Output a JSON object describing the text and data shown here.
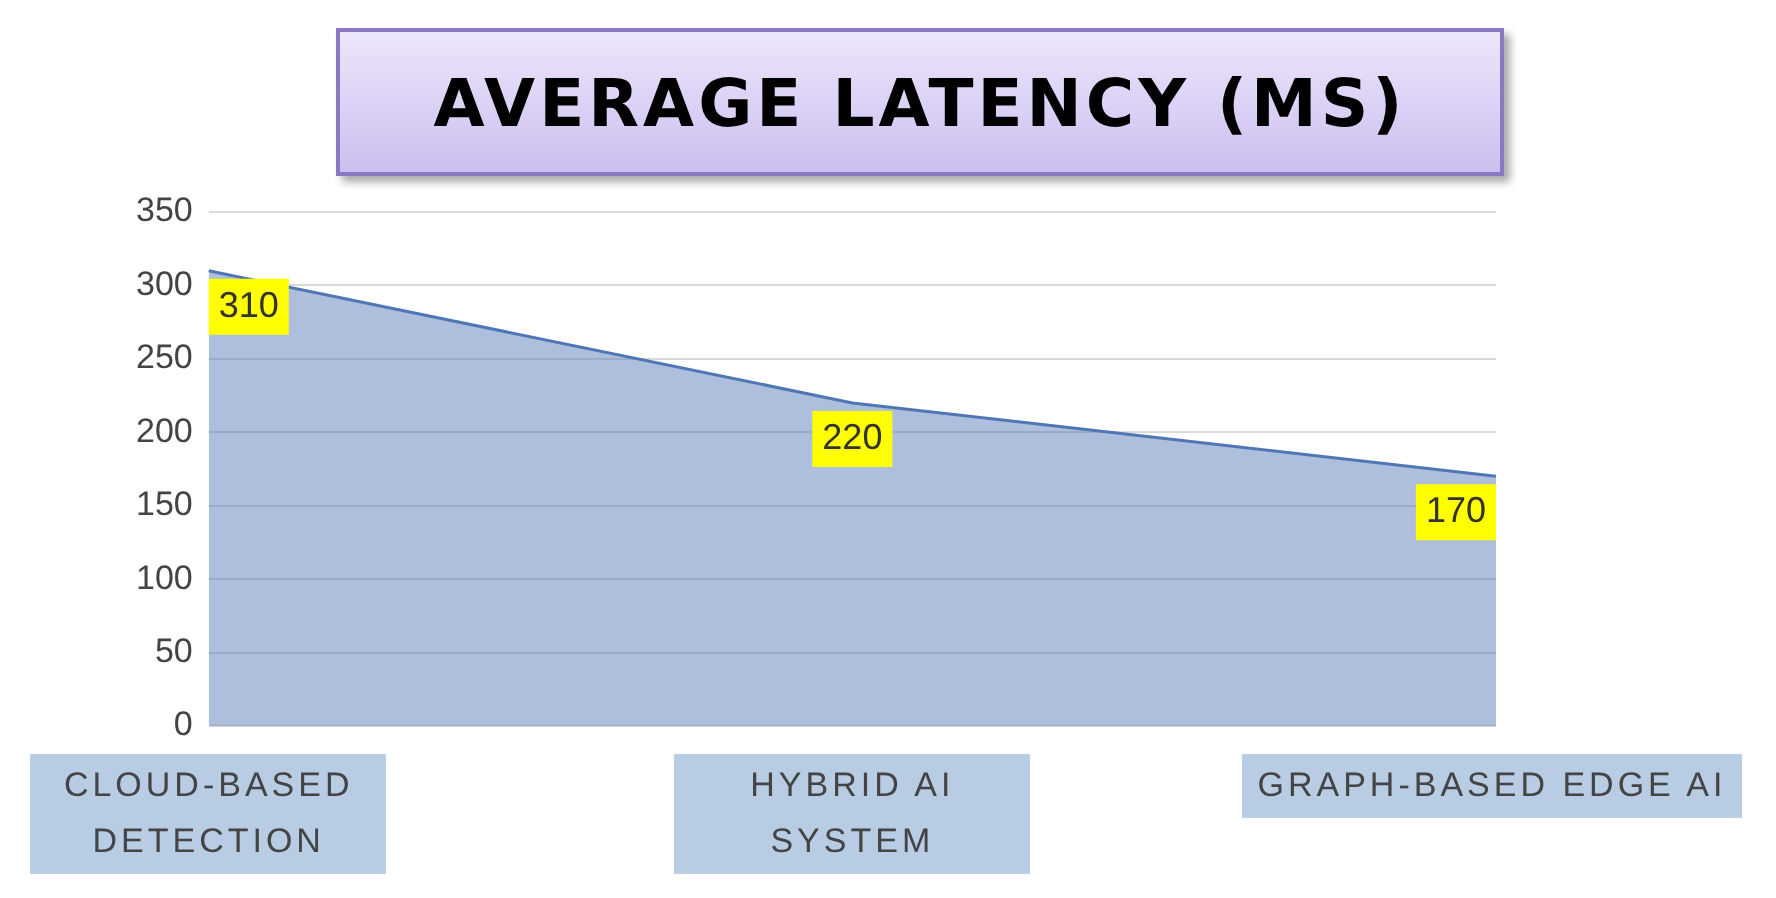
{
  "chart_data": {
    "type": "area",
    "title": "AVERAGE LATENCY (MS)",
    "categories": [
      "CLOUD-BASED DETECTION",
      "HYBRID AI SYSTEM",
      "GRAPH-BASED EDGE AI"
    ],
    "series": [
      {
        "color": "#4f76b5",
        "values": [
          310,
          220,
          170
        ]
      }
    ],
    "ylim": [
      0,
      350
    ],
    "yticks": [
      0,
      50,
      100,
      150,
      200,
      250,
      300,
      350
    ],
    "grid": "y",
    "legend": false,
    "data_labels": true
  }
}
